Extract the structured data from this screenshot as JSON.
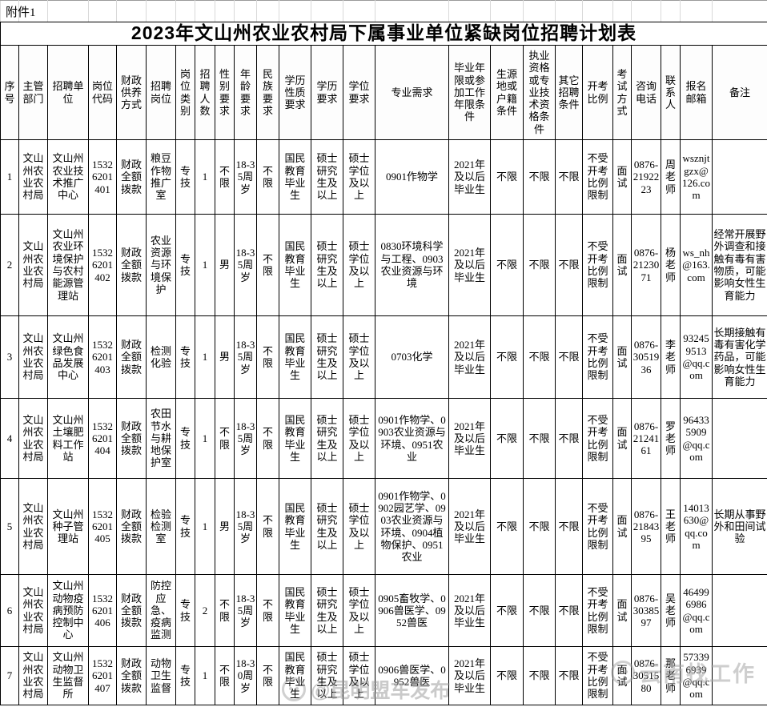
{
  "attachment_label": "附件1",
  "title": "2023年文山州农业农村局下属事业单位紧缺岗位招聘计划表",
  "table": {
    "columns": [
      "序号",
      "主管部门",
      "招聘单位",
      "岗位代码",
      "财政供养方式",
      "招聘岗位",
      "岗位类别",
      "招聘人数",
      "性别要求",
      "年龄要求",
      "民族要求",
      "学历性质要求",
      "学历要求",
      "学位要求",
      "专业需求",
      "毕业年限或参加工作年限条件",
      "生源地或户籍条件",
      "执业资格或专业技术资格条件",
      "其它招聘条件",
      "开考比例",
      "考试方式",
      "咨询电话",
      "联系人",
      "报名邮箱",
      "备注"
    ],
    "rows": [
      [
        "1",
        "文山州农业农村局",
        "文山州农业技术推广中心",
        "15326201401",
        "财政全额拨款",
        "粮豆作物推广室",
        "专技",
        "1",
        "不限",
        "18-35周岁",
        "不限",
        "国民教育毕业生",
        "硕士研究生及以上",
        "硕士学位及以上",
        "0901作物学",
        "2021年及以后毕业生",
        "不限",
        "不限",
        "不限",
        "不受开考比例限制",
        "面试",
        "0876-2192223",
        "周老师",
        "wsznjtgzx@126.com",
        ""
      ],
      [
        "2",
        "文山州农业农村局",
        "文山州农业环境保护与农村能源管理站",
        "15326201402",
        "财政全额拨款",
        "农业资源与环境保护",
        "专技",
        "1",
        "男",
        "18-35周岁",
        "不限",
        "国民教育毕业生",
        "硕士研究生及以上",
        "硕士学位及以上",
        "0830环境科学与工程、0903农业资源与环境",
        "2021年及以后毕业生",
        "不限",
        "不限",
        "不限",
        "不受开考比例限制",
        "面试",
        "0876-2123071",
        "杨老师",
        "ws_nh@163.com",
        "经常开展野外调查和接触有毒有害物质，可能影响女性生育能力"
      ],
      [
        "3",
        "文山州农业农村局",
        "文山州绿色食品发展中心",
        "15326201403",
        "财政全额拨款",
        "检测化验",
        "专技",
        "1",
        "男",
        "18-35周岁",
        "不限",
        "国民教育毕业生",
        "硕士研究生及以上",
        "硕士学位及以上",
        "0703化学",
        "2021年及以后毕业生",
        "不限",
        "不限",
        "不限",
        "不受开考比例限制",
        "面试",
        "0876-3051936",
        "李老师",
        "932459513@qq.com",
        "长期接触有毒有害化学药品，可能影响女性生育能力"
      ],
      [
        "4",
        "文山州农业农村局",
        "文山州土壤肥料工作站",
        "15326201404",
        "财政全额拨款",
        "农田节水与耕地保护室",
        "专技",
        "1",
        "不限",
        "18-35周岁",
        "不限",
        "国民教育毕业生",
        "硕士研究生及以上",
        "硕士学位及以上",
        "0901作物学、0903农业资源与环境、0951农业",
        "2021年及以后毕业生",
        "不限",
        "不限",
        "不限",
        "不受开考比例限制",
        "面试",
        "0876-2124161",
        "罗老师",
        "964335909@qq.com",
        ""
      ],
      [
        "5",
        "文山州农业农村局",
        "文山州种子管理站",
        "15326201405",
        "财政全额拨款",
        "检验检测室",
        "专技",
        "1",
        "男",
        "18-35周岁",
        "不限",
        "国民教育毕业生",
        "硕士研究生及以上",
        "硕士学位及以上",
        "0901作物学、0902园艺学、0903农业资源与环境、0904植物保护、0951农业",
        "2021年及以后毕业生",
        "不限",
        "不限",
        "不限",
        "不受开考比例限制",
        "面试",
        "0876-2184395",
        "王老师",
        "14013630@qq.com",
        "长期从事野外和田间试验"
      ],
      [
        "6",
        "文山州农业农村局",
        "文山州动物疫病预防控制中心",
        "15326201406",
        "财政全额拨款",
        "防控应急、疫病监测",
        "专技",
        "2",
        "不限",
        "18-35周岁",
        "不限",
        "国民教育毕业生",
        "硕士研究生及以上",
        "硕士学位及以上",
        "0905畜牧学、0906兽医学、0952兽医",
        "2021年及以后毕业生",
        "不限",
        "不限",
        "不限",
        "不受开考比例限制",
        "面试",
        "0876-3038597",
        "吴老师",
        "464996986@qq.com",
        ""
      ],
      [
        "7",
        "文山州农业农村局",
        "文山州动物卫生监督所",
        "15326201407",
        "财政全额拨款",
        "动物卫生监督",
        "专技",
        "1",
        "不限",
        "18-30周岁",
        "不限",
        "国民教育毕业生",
        "硕士研究生及以上",
        "硕士学位及以上",
        "0906兽医学、0952兽医",
        "2021年及以后毕业生",
        "不限",
        "不限",
        "不限",
        "不受开考比例限制",
        "面试",
        "0876-3051580",
        "那老师",
        "573396939@qq.com",
        ""
      ]
    ]
  },
  "watermarks": {
    "center": "@昆明盟车发布",
    "right": "云南找工作"
  }
}
